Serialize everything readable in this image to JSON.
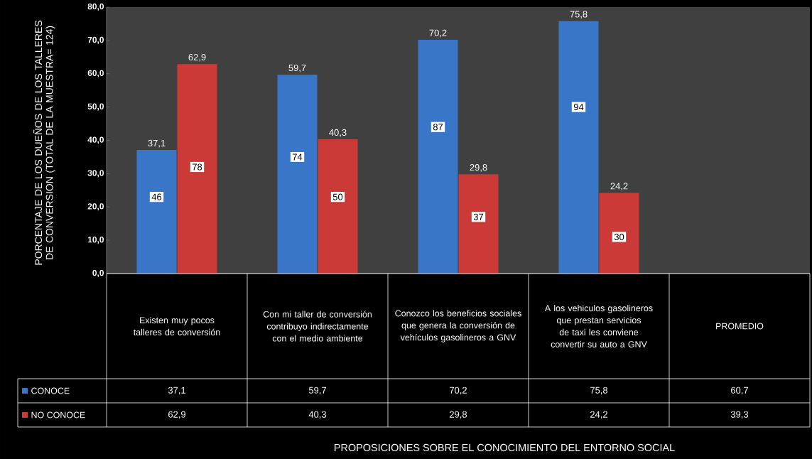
{
  "chart_data": {
    "type": "bar",
    "ylabel": "PORCENTAJE DE LOS DUEÑOS DE LOS TALLERES DE CONVERSION (TOTAL DE LA MUESTRA= 124)",
    "categories": [
      "Existen muy pocos talleres de conversión",
      "Con mi taller de conversión contribuyo indirectamente con el medio ambiente",
      "Conozco los beneficios sociales que genera la conversión de vehículos gasolineros a GNV",
      "A los vehiculos gasolineros que prestan servicios de taxi les conviene convertir su auto a GNV",
      "PROMEDIO"
    ],
    "series": [
      {
        "name": "CONOCE",
        "color": "#3a76c8",
        "values": [
          37.1,
          59.7,
          70.2,
          75.8,
          null
        ],
        "value_labels": [
          "37,1",
          "59,7",
          "70,2",
          "75,8",
          null
        ]
      },
      {
        "name": "NO CONOCE",
        "color": "#cc3a38",
        "values": [
          62.9,
          40.3,
          29.8,
          24.2,
          null
        ],
        "value_labels": [
          "62,9",
          "40,3",
          "29,8",
          "24,2",
          null
        ]
      }
    ],
    "annotations": [
      {
        "text": "46",
        "x": "Existen muy pocos talleres de conversión",
        "y": 23
      },
      {
        "text": "74",
        "x": "Con mi taller de conversión contribuyo indirectamente con el medio ambiente",
        "y": 35
      },
      {
        "text": "87",
        "x": "Conozco los beneficios sociales que genera la conversión de vehículos gasolineros a GNV",
        "y": 44
      },
      {
        "text": "94",
        "x": "A los vehiculos gasolineros que prestan servicios de taxi les conviene convertir su auto a GNV",
        "y": 50
      },
      {
        "text": "78",
        "x": "Existen muy pocos talleres de conversión",
        "y": 32
      },
      {
        "text": "50",
        "x": "Con mi taller de conversión contribuyo indirectamente con el medio ambiente",
        "y": 23
      },
      {
        "text": "37",
        "x": "Conozco los beneficios sociales que genera la conversión de vehículos gasolineros a GNV",
        "y": 17
      },
      {
        "text": "30",
        "x": "A los vehiculos gasolineros que prestan servicios de taxi les conviene convertir su auto a GNV",
        "y": 11
      },
      "60,7",
      "39,3",
      "PROPOSICIONES  SOBRE EL CONOCIMIENTO  DEL ENTORNO  SOCIAL"
    ],
    "legend": "bottom left",
    "ylim": [
      0,
      80
    ],
    "yticks": [
      {
        "value": 0,
        "label": "0,0"
      },
      {
        "value": 10,
        "label": "10,0"
      },
      {
        "value": 20,
        "label": "20,0"
      },
      {
        "value": 30,
        "label": "30,0"
      },
      {
        "value": 40,
        "label": "40,0"
      },
      {
        "value": 50,
        "label": "50,0"
      },
      {
        "value": 60,
        "label": "60,0"
      },
      {
        "value": 70,
        "label": "70,0"
      },
      {
        "value": 80,
        "label": "80,0"
      }
    ]
  }
}
